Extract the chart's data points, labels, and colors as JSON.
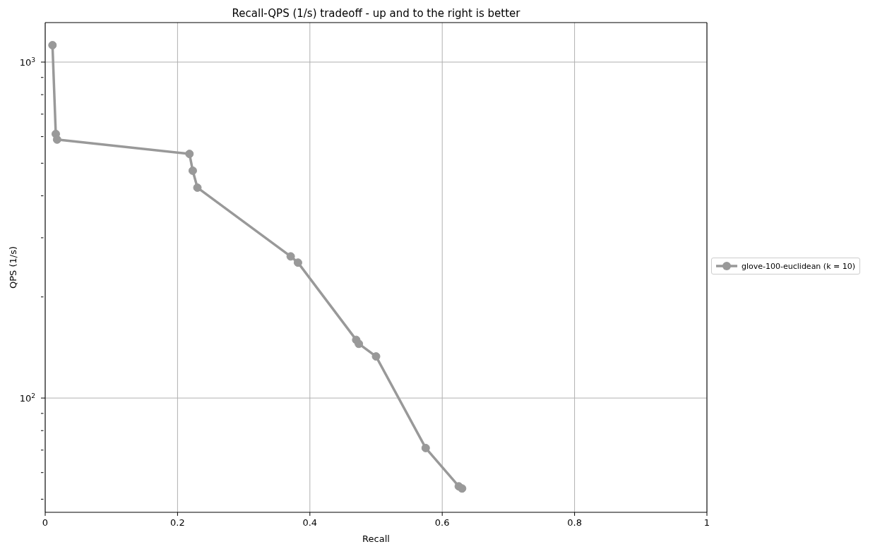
{
  "chart_data": {
    "type": "line",
    "title": "Recall-QPS (1/s) tradeoff - up and to the right is better",
    "xlabel": "Recall",
    "ylabel": "QPS (1/s)",
    "x": [
      0.011,
      0.016,
      0.018,
      0.218,
      0.223,
      0.23,
      0.371,
      0.382,
      0.47,
      0.474,
      0.5,
      0.575,
      0.625,
      0.63
    ],
    "series": [
      {
        "name": "glove-100-euclidean (k = 10)",
        "color": "#999999",
        "values": [
          1123,
          611,
          588,
          533,
          475,
          423,
          264,
          253,
          149,
          145,
          133,
          71,
          54.6,
          53.8
        ]
      }
    ],
    "log": "y",
    "xlim": [
      0,
      1
    ],
    "xticks": [
      0,
      0.2,
      0.4,
      0.6,
      0.8,
      1.0
    ],
    "ylim": [
      45.7,
      1311
    ],
    "yticks": [
      {
        "value": 50,
        "label": null
      },
      {
        "value": 60,
        "label": null
      },
      {
        "value": 70,
        "label": null
      },
      {
        "value": 80,
        "label": null
      },
      {
        "value": 90,
        "label": null
      },
      {
        "value": 100,
        "label": "10$^{2}$"
      },
      {
        "value": 200,
        "label": null
      },
      {
        "value": 300,
        "label": null
      },
      {
        "value": 400,
        "label": null
      },
      {
        "value": 500,
        "label": null
      },
      {
        "value": 600,
        "label": null
      },
      {
        "value": 700,
        "label": null
      },
      {
        "value": 800,
        "label": null
      },
      {
        "value": 900,
        "label": null
      },
      {
        "value": 1000,
        "label": "10$^{3}$"
      }
    ],
    "grid": true,
    "legend": "right",
    "marker": "circle",
    "line_style": "solid"
  }
}
